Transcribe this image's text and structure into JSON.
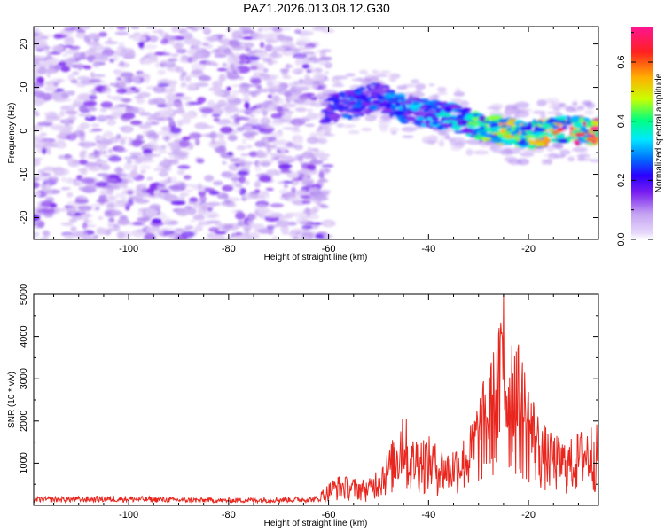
{
  "title": "PAZ1.2026.013.08.12.G30",
  "chart_data": [
    {
      "type": "heatmap",
      "title": "PAZ1.2026.013.08.12.G30",
      "xlabel": "Height of straight line (km)",
      "ylabel": "Frequency (Hz)",
      "xlim": [
        -119,
        -6
      ],
      "ylim": [
        -25,
        24
      ],
      "xticks": [
        -100,
        -80,
        -60,
        -40,
        -20
      ],
      "yticks": [
        -20,
        -10,
        0,
        10,
        20
      ],
      "colorbar": {
        "label": "Normalized spectral amplitude",
        "range": [
          0.0,
          0.72
        ],
        "ticks": [
          0.0,
          0.2,
          0.4,
          0.6
        ],
        "tick_labels": [
          "0.0",
          "0.2",
          "0.4",
          "0.6"
        ],
        "colormap": [
          "#ffffff",
          "#dcc8f5",
          "#b28cf0",
          "#7a1ff0",
          "#2a00ff",
          "#0070ff",
          "#00e8ff",
          "#00ff80",
          "#c8ff00",
          "#ffb000",
          "#ff2020",
          "#ff1493"
        ]
      },
      "features": {
        "noise_region": {
          "x_range": [
            -119,
            -60
          ],
          "freq_range": [
            -25,
            24
          ],
          "amplitude": 0.08
        },
        "signal_trend": {
          "x": [
            -61,
            -56,
            -50,
            -45,
            -40,
            -35,
            -30,
            -25,
            -20,
            -15,
            -10,
            -6
          ],
          "freq": [
            5,
            6,
            8,
            5,
            4,
            3,
            1,
            0,
            -1,
            0,
            0,
            0
          ],
          "amplitude": [
            0.25,
            0.3,
            0.3,
            0.35,
            0.35,
            0.4,
            0.45,
            0.55,
            0.5,
            0.55,
            0.65,
            0.7
          ]
        }
      }
    },
    {
      "type": "line",
      "xlabel": "Height of straight line (km)",
      "ylabel": "SNR (10 * v/v)",
      "xlim": [
        -119,
        -6
      ],
      "ylim": [
        0,
        5000
      ],
      "xticks": [
        -100,
        -80,
        -60,
        -40,
        -20
      ],
      "yticks": [
        1000,
        2000,
        3000,
        4000,
        5000
      ],
      "series": [
        {
          "name": "SNR",
          "color": "#e8261e",
          "x": [
            -119,
            -110,
            -100,
            -90,
            -80,
            -70,
            -62,
            -60,
            -58,
            -55,
            -52,
            -50,
            -48,
            -46,
            -45,
            -44,
            -42,
            -40,
            -38,
            -36,
            -34,
            -32,
            -30,
            -28,
            -26,
            -25,
            -24,
            -23,
            -22,
            -20,
            -18,
            -16,
            -14,
            -12,
            -10,
            -8,
            -6
          ],
          "values": [
            150,
            160,
            170,
            140,
            130,
            150,
            160,
            500,
            650,
            600,
            550,
            900,
            1200,
            1800,
            2500,
            1400,
            1600,
            1500,
            1300,
            1200,
            1400,
            1600,
            2400,
            3000,
            3800,
            5000,
            3500,
            4300,
            3500,
            2800,
            2000,
            1600,
            1500,
            1400,
            1600,
            1800,
            1750
          ]
        }
      ]
    }
  ]
}
